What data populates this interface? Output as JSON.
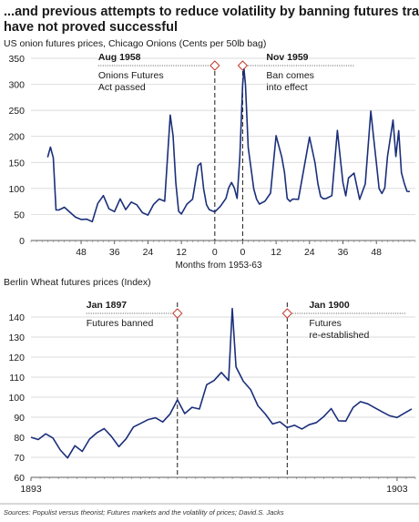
{
  "headline": {
    "line1": "...and previous attempts to reduce volatility by banning futures trading",
    "line2": "have not proved successful"
  },
  "colors": {
    "series": "#1b2f7a",
    "text": "#1a1a1a",
    "grid": "#cfcfcf",
    "marker": "#c0392b"
  },
  "chart_data": [
    {
      "type": "line",
      "title": "US onion futures prices, Chicago Onions (Cents per 50lb bag)",
      "xlabel": "Months from 1953-63",
      "ylabel": "",
      "ylim": [
        0,
        350
      ],
      "yticks": [
        0,
        50,
        100,
        150,
        200,
        250,
        300,
        350
      ],
      "xticks": [
        {
          "x": 12,
          "label": "48"
        },
        {
          "x": 24,
          "label": "36"
        },
        {
          "x": 36,
          "label": "24"
        },
        {
          "x": 48,
          "label": "12"
        },
        {
          "x": 60,
          "label": "0"
        },
        {
          "x": 70,
          "label": "0"
        },
        {
          "x": 82,
          "label": "12"
        },
        {
          "x": 94,
          "label": "24"
        },
        {
          "x": 106,
          "label": "36"
        },
        {
          "x": 118,
          "label": "48"
        }
      ],
      "xlim": [
        -6,
        132
      ],
      "grid": true,
      "annotations": [
        {
          "x": 60,
          "title": "Aug 1958",
          "text": [
            "Onions Futures",
            "Act passed"
          ]
        },
        {
          "x": 70,
          "title": "Nov 1959",
          "text": [
            "Ban comes",
            "into effect"
          ]
        }
      ],
      "series": [
        {
          "x": [
            0,
            1,
            2,
            3,
            4,
            6,
            8,
            10,
            12,
            14,
            16,
            18,
            20,
            22,
            24,
            26,
            28,
            30,
            32,
            34,
            36,
            38,
            40,
            42,
            44,
            45,
            46,
            47,
            48,
            49,
            50,
            52,
            54,
            55,
            56,
            57,
            58,
            60,
            62,
            64,
            65,
            66,
            67,
            68,
            69,
            70,
            70.5,
            71,
            72,
            73,
            74,
            75,
            76,
            78,
            80,
            82,
            84,
            85,
            86,
            87,
            88,
            90,
            92,
            94,
            96,
            97,
            98,
            99,
            100,
            102,
            104,
            105,
            106,
            107,
            108,
            110,
            112,
            114,
            116,
            117,
            118,
            119,
            120,
            121,
            122,
            124,
            125,
            126,
            127,
            128,
            129,
            130
          ],
          "y": [
            160,
            180,
            160,
            60,
            60,
            65,
            55,
            45,
            40,
            40,
            35,
            70,
            85,
            60,
            55,
            80,
            60,
            75,
            70,
            55,
            50,
            70,
            80,
            75,
            240,
            200,
            110,
            55,
            50,
            60,
            70,
            80,
            145,
            150,
            100,
            70,
            60,
            55,
            65,
            80,
            100,
            110,
            100,
            80,
            160,
            300,
            330,
            300,
            180,
            140,
            100,
            80,
            70,
            75,
            90,
            200,
            160,
            130,
            80,
            75,
            80,
            80,
            140,
            200,
            150,
            110,
            85,
            80,
            80,
            85,
            210,
            160,
            110,
            85,
            120,
            130,
            80,
            110,
            250,
            200,
            150,
            100,
            90,
            100,
            160,
            230,
            160,
            210,
            130,
            110,
            95,
            95
          ]
        }
      ]
    },
    {
      "type": "line",
      "title": "Berlin Wheat futures prices (Index)",
      "xlabel": "",
      "ylabel": "",
      "ylim": [
        60,
        150
      ],
      "yticks": [
        60,
        70,
        80,
        90,
        100,
        110,
        120,
        130,
        140
      ],
      "xlim": [
        1893,
        1903.5
      ],
      "xticks": [
        {
          "x": 1893,
          "label": "1893"
        },
        {
          "x": 1903,
          "label": "1903"
        }
      ],
      "grid": true,
      "annotations": [
        {
          "x": 1897,
          "title": "Jan 1897",
          "text": [
            "Futures banned"
          ]
        },
        {
          "x": 1900,
          "title": "Jan 1900",
          "text": [
            "Futures",
            "re-established"
          ]
        }
      ],
      "series": [
        {
          "x": [
            1893.0,
            1893.2,
            1893.4,
            1893.6,
            1893.8,
            1894.0,
            1894.2,
            1894.4,
            1894.6,
            1894.8,
            1895.0,
            1895.2,
            1895.4,
            1895.6,
            1895.8,
            1896.0,
            1896.2,
            1896.4,
            1896.6,
            1896.8,
            1897.0,
            1897.2,
            1897.4,
            1897.6,
            1897.8,
            1898.0,
            1898.2,
            1898.4,
            1898.5,
            1898.6,
            1898.8,
            1899.0,
            1899.2,
            1899.4,
            1899.6,
            1899.8,
            1900.0,
            1900.2,
            1900.4,
            1900.6,
            1900.8,
            1901.0,
            1901.2,
            1901.4,
            1901.6,
            1901.8,
            1902.0,
            1902.2,
            1902.4,
            1902.6,
            1902.8,
            1903.0,
            1903.2,
            1903.4
          ],
          "y": [
            80,
            79,
            82,
            80,
            74,
            70,
            76,
            73,
            79,
            82,
            84,
            80,
            75,
            79,
            85,
            87,
            89,
            90,
            88,
            92,
            99,
            92,
            95,
            94,
            106,
            108,
            112,
            108,
            144,
            115,
            108,
            104,
            96,
            92,
            87,
            88,
            85,
            86,
            84,
            86,
            87,
            90,
            94,
            88,
            88,
            95,
            98,
            97,
            95,
            93,
            91,
            90,
            92,
            94
          ]
        }
      ]
    }
  ],
  "source": "Sources:  Populist versus theorist; Futures markets and the volatility of prices; David.S. Jacks"
}
